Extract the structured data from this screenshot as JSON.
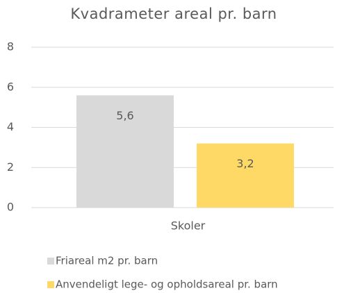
{
  "chart_data": {
    "type": "bar",
    "title": "Kvadrameter areal pr. barn",
    "categories": [
      "Skoler"
    ],
    "series": [
      {
        "name": "Friareal m2 pr. barn",
        "color": "#d9d9d9",
        "values": [
          5.6
        ],
        "value_labels": [
          "5,6"
        ]
      },
      {
        "name": "Anvendeligt lege- og opholdsareal pr. barn",
        "color": "#ffd966",
        "values": [
          3.2
        ],
        "value_labels": [
          "3,2"
        ]
      }
    ],
    "ylim": [
      0,
      8
    ],
    "yticks": [
      0,
      2,
      4,
      6,
      8
    ],
    "grid": true,
    "legend": "bottom"
  }
}
